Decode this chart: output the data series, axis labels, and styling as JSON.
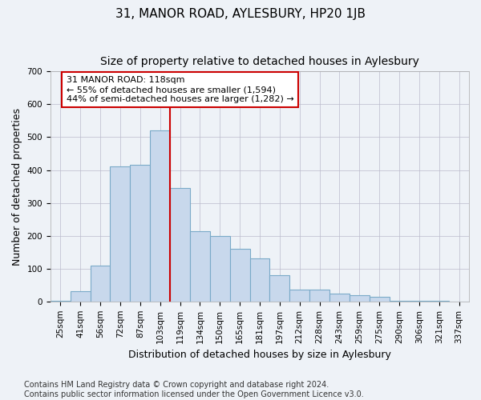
{
  "title": "31, MANOR ROAD, AYLESBURY, HP20 1JB",
  "subtitle": "Size of property relative to detached houses in Aylesbury",
  "xlabel": "Distribution of detached houses by size in Aylesbury",
  "ylabel": "Number of detached properties",
  "categories": [
    "25sqm",
    "41sqm",
    "56sqm",
    "72sqm",
    "87sqm",
    "103sqm",
    "119sqm",
    "134sqm",
    "150sqm",
    "165sqm",
    "181sqm",
    "197sqm",
    "212sqm",
    "228sqm",
    "243sqm",
    "259sqm",
    "275sqm",
    "290sqm",
    "306sqm",
    "321sqm",
    "337sqm"
  ],
  "values": [
    2,
    30,
    110,
    410,
    415,
    520,
    345,
    215,
    200,
    160,
    130,
    80,
    35,
    35,
    25,
    20,
    15,
    3,
    1,
    1,
    0
  ],
  "bar_color": "#c8d8ec",
  "bar_edge_color": "#7aaac8",
  "highlight_line_color": "#cc0000",
  "annotation_text": "31 MANOR ROAD: 118sqm\n← 55% of detached houses are smaller (1,594)\n44% of semi-detached houses are larger (1,282) →",
  "annotation_box_color": "white",
  "annotation_box_edge_color": "#cc0000",
  "ylim": [
    0,
    700
  ],
  "yticks": [
    0,
    100,
    200,
    300,
    400,
    500,
    600,
    700
  ],
  "footer_text": "Contains HM Land Registry data © Crown copyright and database right 2024.\nContains public sector information licensed under the Open Government Licence v3.0.",
  "bg_color": "#eef2f7",
  "plot_bg_color": "#eef2f7",
  "grid_color": "#bbbbcc",
  "title_fontsize": 11,
  "subtitle_fontsize": 10,
  "xlabel_fontsize": 9,
  "ylabel_fontsize": 9,
  "tick_fontsize": 7.5,
  "annotation_fontsize": 8,
  "footer_fontsize": 7
}
